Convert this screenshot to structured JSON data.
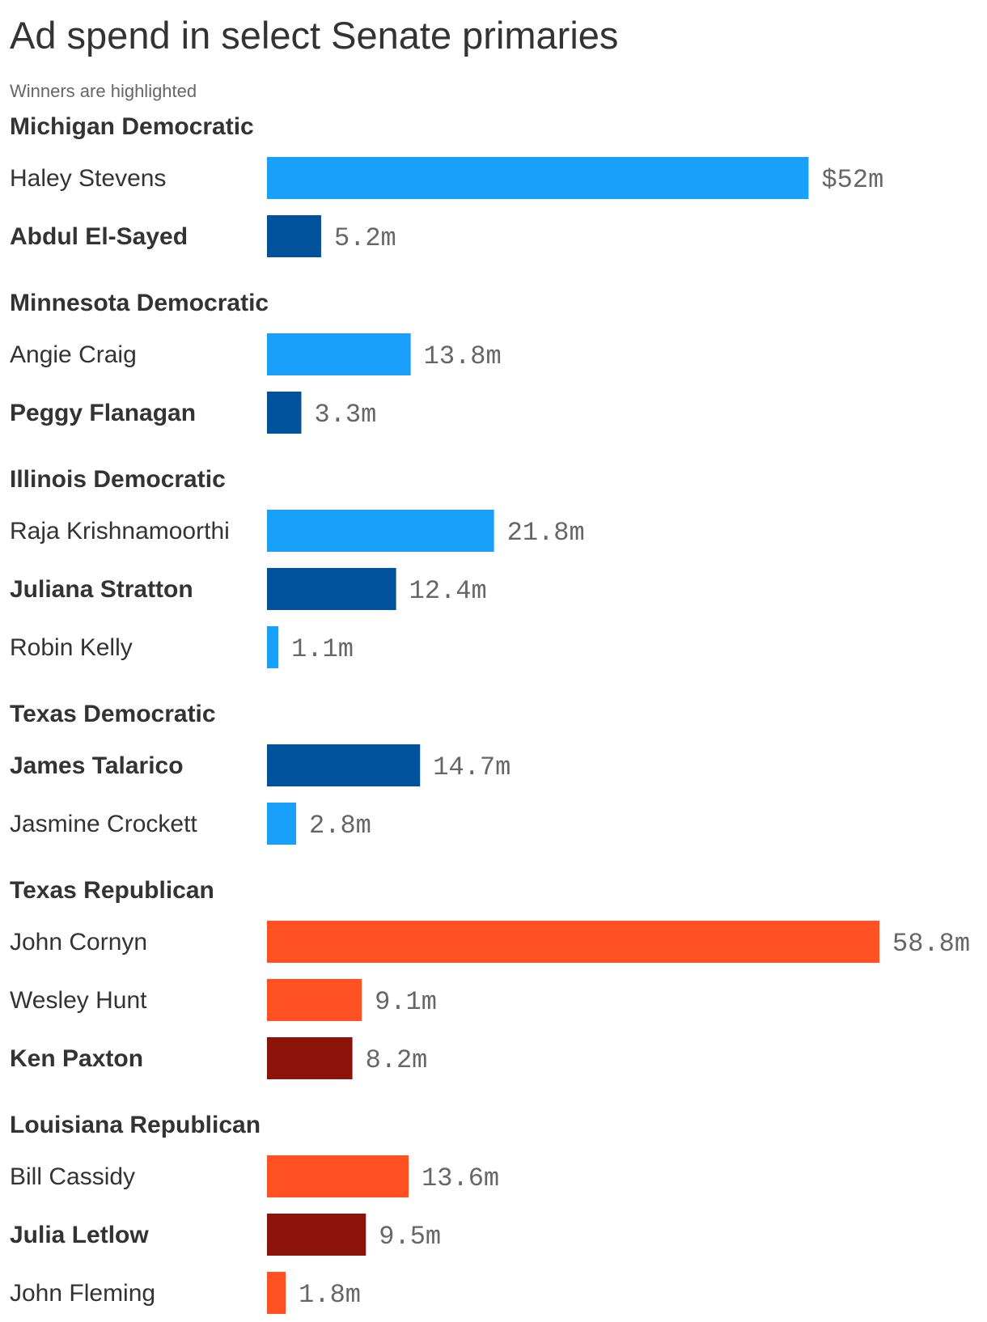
{
  "chart_data": {
    "type": "bar",
    "orientation": "horizontal",
    "title": "Ad spend in select Senate primaries",
    "subtitle": "Winners are highlighted",
    "unit": "m",
    "value_prefix_first": "$",
    "colors": {
      "democratic": "#18a0fb",
      "democratic_winner": "#00529b",
      "republican": "#ff5122",
      "republican_winner": "#8b130a"
    },
    "groups": [
      {
        "label": "Michigan Democratic",
        "party": "democratic",
        "candidates": [
          {
            "name": "Haley Stevens",
            "value": 52,
            "display": "$52m",
            "winner": false
          },
          {
            "name": "Abdul El-Sayed",
            "value": 5.2,
            "display": "5.2m",
            "winner": true
          }
        ]
      },
      {
        "label": "Minnesota Democratic",
        "party": "democratic",
        "candidates": [
          {
            "name": "Angie Craig",
            "value": 13.8,
            "display": "13.8m",
            "winner": false
          },
          {
            "name": "Peggy Flanagan",
            "value": 3.3,
            "display": "3.3m",
            "winner": true
          }
        ]
      },
      {
        "label": "Illinois Democratic",
        "party": "democratic",
        "candidates": [
          {
            "name": "Raja Krishnamoorthi",
            "value": 21.8,
            "display": "21.8m",
            "winner": false
          },
          {
            "name": "Juliana Stratton",
            "value": 12.4,
            "display": "12.4m",
            "winner": true
          },
          {
            "name": "Robin Kelly",
            "value": 1.1,
            "display": "1.1m",
            "winner": false
          }
        ]
      },
      {
        "label": "Texas Democratic",
        "party": "democratic",
        "candidates": [
          {
            "name": "James Talarico",
            "value": 14.7,
            "display": "14.7m",
            "winner": true
          },
          {
            "name": "Jasmine Crockett",
            "value": 2.8,
            "display": "2.8m",
            "winner": false
          }
        ]
      },
      {
        "label": "Texas Republican",
        "party": "republican",
        "candidates": [
          {
            "name": "John Cornyn",
            "value": 58.8,
            "display": "58.8m",
            "winner": false
          },
          {
            "name": "Wesley Hunt",
            "value": 9.1,
            "display": "9.1m",
            "winner": false
          },
          {
            "name": "Ken Paxton",
            "value": 8.2,
            "display": "8.2m",
            "winner": true
          }
        ]
      },
      {
        "label": "Louisiana Republican",
        "party": "republican",
        "candidates": [
          {
            "name": "Bill Cassidy",
            "value": 13.6,
            "display": "13.6m",
            "winner": false
          },
          {
            "name": "Julia Letlow",
            "value": 9.5,
            "display": "9.5m",
            "winner": true
          },
          {
            "name": "John Fleming",
            "value": 1.8,
            "display": "1.8m",
            "winner": false
          }
        ]
      }
    ],
    "xlim": [
      0,
      58.8
    ]
  }
}
